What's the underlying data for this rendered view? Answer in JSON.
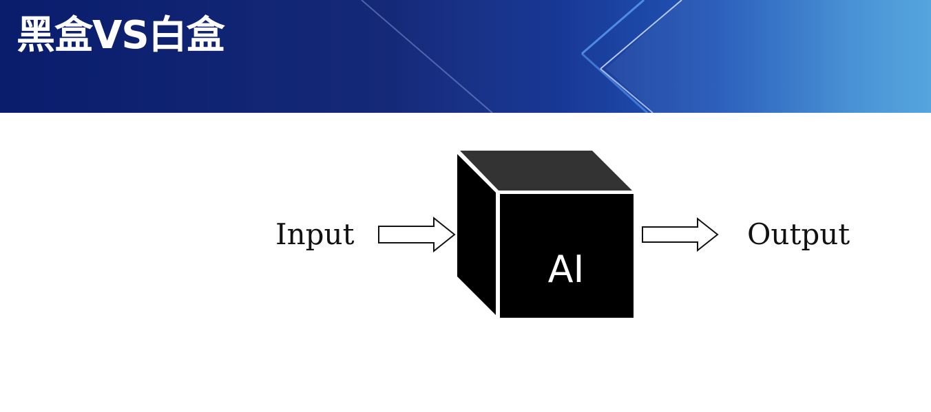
{
  "slide": {
    "title": "黑盒VS白盒"
  },
  "diagram": {
    "input_label": "Input",
    "box_label": "AI",
    "output_label": "Output",
    "icons": [
      "arrow-right-icon",
      "cube-icon",
      "arrow-right-icon"
    ],
    "colors": {
      "header_dark": "#0a1d6d",
      "header_light": "#4a9fdc",
      "cube_front": "#000000",
      "cube_top": "#333333",
      "text": "#111111"
    }
  }
}
